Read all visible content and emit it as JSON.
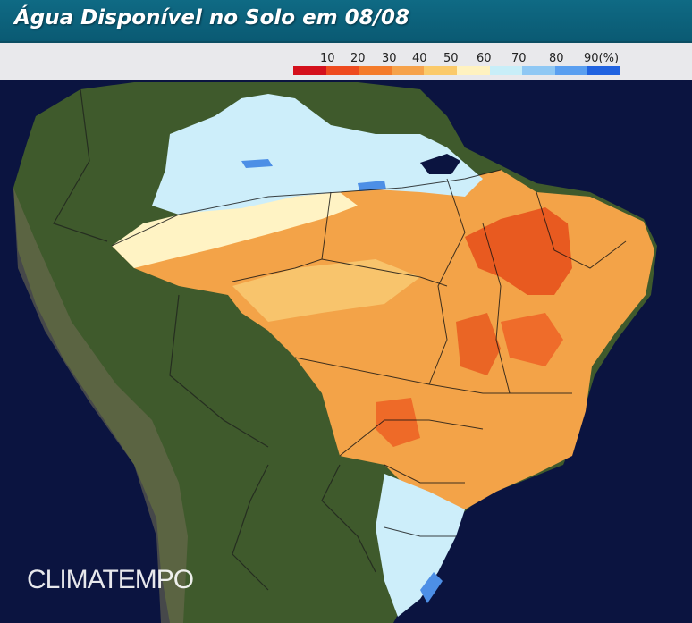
{
  "header": {
    "title": "Água Disponível no Solo em 08/08"
  },
  "legend": {
    "labels": [
      "10",
      "20",
      "30",
      "40",
      "50",
      "60",
      "70",
      "80",
      "90(%)"
    ],
    "colors": [
      "#d4101c",
      "#ee4a1e",
      "#f47b2a",
      "#f6a24a",
      "#fbca6a",
      "#fff2c0",
      "#c8eef8",
      "#8fc8f4",
      "#5a9ff0",
      "#2062e0"
    ]
  },
  "watermark": {
    "text": "CLIMATEMPO"
  },
  "colors": {
    "ocean": "#0b1440",
    "land": "#3f5a2c",
    "dry_dark": "#e85a20",
    "dry": "#f3a348",
    "medium": "#f8c870",
    "pale": "#fff3c4",
    "moist": "#cdeefa",
    "wet": "#4d8fe6"
  }
}
